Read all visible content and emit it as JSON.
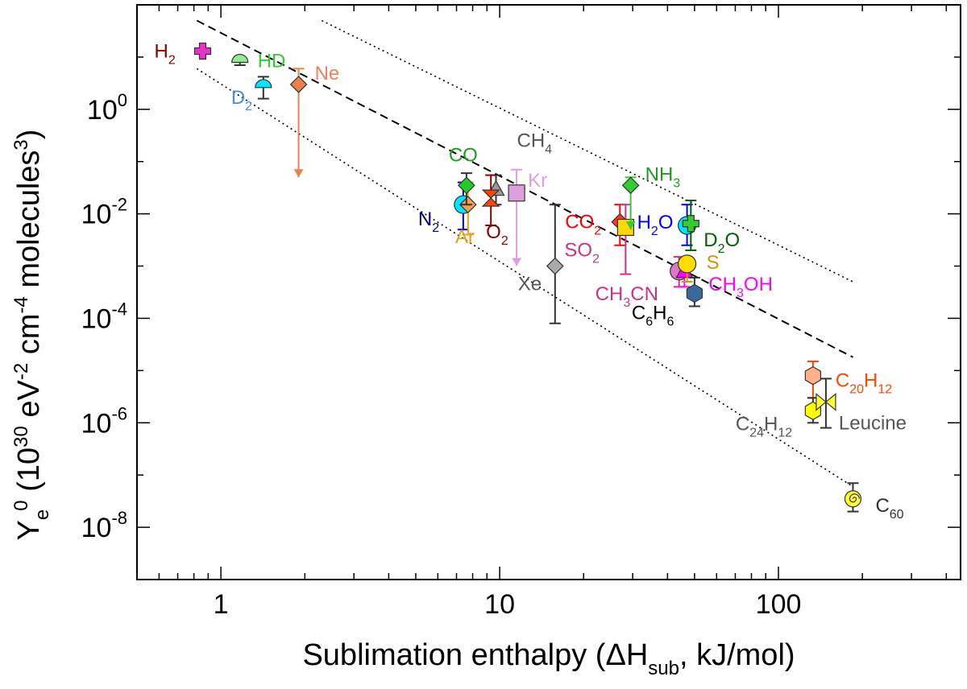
{
  "chart_data": {
    "type": "scatter",
    "x_scale": "log",
    "y_scale": "log",
    "xlim": [
      0.5,
      450
    ],
    "ylim": [
      1e-09,
      100.0
    ],
    "grid": false,
    "legend": "none",
    "xlabel": {
      "main": "Sublimation enthalpy (ΔH",
      "sub": "sub",
      "tail": ", kJ/mol)"
    },
    "ylabel": {
      "main": "Y",
      "sub": "e",
      "sup": "0",
      "tail1": " (10",
      "sup2": "30",
      "tail2": " eV",
      "sup3": "-2",
      "tail3": " cm",
      "sup4": "-4",
      "tail4": " molecules",
      "sup5": "3",
      "tail5": ")"
    },
    "x_ticks": [
      {
        "value": 1,
        "label": "1"
      },
      {
        "value": 10,
        "label": "10"
      },
      {
        "value": 100,
        "label": "100"
      }
    ],
    "y_ticks": [
      {
        "value": 1,
        "base": "10",
        "exp": "0"
      },
      {
        "value": 0.01,
        "base": "10",
        "exp": "-2"
      },
      {
        "value": 0.0001,
        "base": "10",
        "exp": "-4"
      },
      {
        "value": 1e-06,
        "base": "10",
        "exp": "-6"
      },
      {
        "value": 1e-08,
        "base": "10",
        "exp": "-8"
      }
    ],
    "fit_lines": [
      {
        "style": "dashed",
        "x": [
          0.82,
          185
        ],
        "y": [
          50,
          1.8e-05
        ]
      },
      {
        "style": "dotted",
        "x": [
          0.82,
          185
        ],
        "y": [
          6,
          6e-08
        ]
      },
      {
        "style": "dotted",
        "x": [
          2.3,
          185
        ],
        "y": [
          50,
          0.0005
        ]
      }
    ],
    "points": [
      {
        "name": "H2",
        "label": "H",
        "sub": "2",
        "x": 0.86,
        "y": 13,
        "err": [
          13,
          13
        ],
        "marker": "cross",
        "color": "#e633cc",
        "label_color": "#8b0000"
      },
      {
        "name": "HD",
        "label": "HD",
        "x": 1.17,
        "y": 8.5,
        "err": [
          7.0,
          9.5
        ],
        "marker": "dome",
        "color": "#90ee90",
        "label_color": "#33cc33"
      },
      {
        "name": "D2",
        "label": "D",
        "sub": "2",
        "x": 1.42,
        "y": 2.8,
        "err": [
          1.6,
          4.2
        ],
        "marker": "dome",
        "color": "#00e5ff",
        "label_color": "#4a90d9"
      },
      {
        "name": "Ne",
        "label": "Ne",
        "x": 1.9,
        "y": 3.0,
        "err": [
          0.05,
          6.0
        ],
        "marker": "diamond",
        "color": "#e8804a",
        "label_color": "#f08060",
        "upper_limit": true
      },
      {
        "name": "N2",
        "label": "N",
        "sub": "2",
        "x": 7.4,
        "y": 0.015,
        "err": [
          0.005,
          0.04
        ],
        "marker": "circle",
        "color": "#00e5ff",
        "label_color": "#000080",
        "err_color": "#0000cd"
      },
      {
        "name": "Ar",
        "label": "Ar",
        "x": 7.7,
        "y": 0.015,
        "err": [
          0.004,
          0.04
        ],
        "marker": "diamond",
        "color": "#f0a050",
        "label_color": "#e6a020",
        "err_color": "#e6a020"
      },
      {
        "name": "CO",
        "label": "CO",
        "x": 7.6,
        "y": 0.035,
        "err": [
          0.015,
          0.06
        ],
        "marker": "diamond",
        "color": "#22cc22",
        "label_color": "#229922"
      },
      {
        "name": "CH4",
        "label": "CH",
        "sub": "4",
        "x": 9.7,
        "y": 0.03,
        "err": [
          0.015,
          0.055
        ],
        "marker": "triangle",
        "color": "#999999",
        "label_color": "#555555"
      },
      {
        "name": "O2",
        "label": "O",
        "sub": "2",
        "x": 9.3,
        "y": 0.02,
        "err": [
          0.006,
          0.055
        ],
        "marker": "hourglass",
        "color": "#ff4500",
        "label_color": "#8b0000",
        "err_color": "#8b0000"
      },
      {
        "name": "Kr",
        "label": "Kr",
        "x": 11.5,
        "y": 0.025,
        "err": [
          0.001,
          0.07
        ],
        "marker": "square",
        "color": "#dda0dd",
        "label_color": "#dda0dd",
        "upper_limit": true
      },
      {
        "name": "Xe",
        "label": "Xe",
        "x": 15.8,
        "y": 0.001,
        "err": [
          8e-05,
          0.015
        ],
        "marker": "diamond",
        "color": "#aaaaaa",
        "label_color": "#555555"
      },
      {
        "name": "CO2",
        "label": "CO",
        "sub": "2",
        "x": 27,
        "y": 0.007,
        "err": [
          0.0025,
          0.015
        ],
        "marker": "diamond",
        "color": "#ff3333",
        "label_color": "#ff0000",
        "err_color": "#ff0000"
      },
      {
        "name": "SO2",
        "label": "SO",
        "sub": "2",
        "x": 28.3,
        "y": 0.0055,
        "err": [
          0.0007,
          0.015
        ],
        "marker": "square",
        "color": "#ffd700",
        "label_color": "#cc3388",
        "err_color": "#cc3388"
      },
      {
        "name": "NH3",
        "label": "NH",
        "sub": "3",
        "x": 29.5,
        "y": 0.035,
        "err": [
          0.005,
          0.05
        ],
        "marker": "diamond",
        "color": "#33cc33",
        "label_color": "#229922",
        "upper_limit": true
      },
      {
        "name": "CH3CN",
        "label": "CH",
        "sub": "3",
        "tail": "CN",
        "x": 44,
        "y": 0.0008,
        "err": [
          0.0004,
          0.0015
        ],
        "marker": "circle",
        "color": "#dd77cc",
        "label_color": "#cc3388",
        "err_color": "#cc3388"
      },
      {
        "name": "CH3OH",
        "label": "CH",
        "sub": "3",
        "tail": "OH",
        "x": 46,
        "y": 0.0008,
        "err": [
          0.0004,
          0.0012
        ],
        "marker": "triangle",
        "color": "#ff00ff",
        "label_color": "#ff00ff",
        "err_color": "#ff00ff"
      },
      {
        "name": "S",
        "label": "S",
        "x": 47,
        "y": 0.0011,
        "err": [
          0.0005,
          0.0015
        ],
        "marker": "circle",
        "color": "#ffdd00",
        "label_color": "#cc9900",
        "err_color": "#cc9900"
      },
      {
        "name": "H2O",
        "label": "H",
        "sub": "2",
        "tail": "O",
        "x": 47,
        "y": 0.006,
        "err": [
          0.0025,
          0.015
        ],
        "marker": "circle",
        "color": "#00e5ff",
        "label_color": "#0000ff",
        "err_color": "#0000ff"
      },
      {
        "name": "D2O",
        "label": "D",
        "sub": "2",
        "tail": "O",
        "x": 48.5,
        "y": 0.0065,
        "err": [
          0.002,
          0.018
        ],
        "marker": "cross",
        "color": "#33cc33",
        "label_color": "#006400",
        "err_color": "#006400"
      },
      {
        "name": "C6H6",
        "label": "C",
        "sub": "6",
        "tail": "H",
        "sub2": "6",
        "x": 50,
        "y": 0.0003,
        "err": [
          0.00017,
          0.0006
        ],
        "marker": "hexagon",
        "color": "#3a6a9a",
        "label_color": "#000000"
      },
      {
        "name": "C20H12",
        "label": "C",
        "sub": "20",
        "tail": "H",
        "sub2": "12",
        "x": 133,
        "y": 8e-06,
        "err": [
          3e-06,
          1.5e-05
        ],
        "marker": "hexagon",
        "color": "#ffb08a",
        "label_color": "#ff4500",
        "err_color": "#ff4500"
      },
      {
        "name": "C24H12",
        "label": "C",
        "sub": "24",
        "tail": "H",
        "sub2": "12",
        "x": 133,
        "y": 1.7e-06,
        "err": [
          1e-06,
          3e-06
        ],
        "marker": "hexagon",
        "color": "#ffff00",
        "label_color": "#555555"
      },
      {
        "name": "Leucine",
        "label": "Leucine",
        "x": 148,
        "y": 2.5e-06,
        "err": [
          8e-07,
          7e-06
        ],
        "marker": "bowtie",
        "color": "#ffff33",
        "label_color": "#555555"
      },
      {
        "name": "C60",
        "label": "C",
        "sub": "60",
        "x": 185,
        "y": 3.5e-08,
        "err": [
          2e-08,
          7e-08
        ],
        "marker": "spiral",
        "color": "#ffff33",
        "label_color": "#333333"
      }
    ]
  }
}
